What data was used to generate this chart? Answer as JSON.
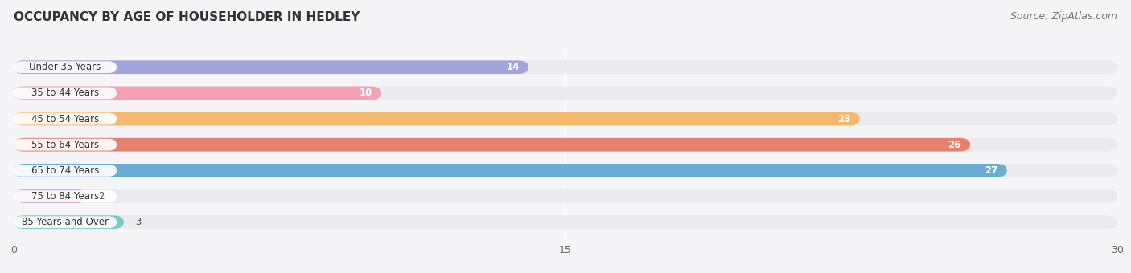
{
  "title": "OCCUPANCY BY AGE OF HOUSEHOLDER IN HEDLEY",
  "source": "Source: ZipAtlas.com",
  "categories": [
    "Under 35 Years",
    "35 to 44 Years",
    "45 to 54 Years",
    "55 to 64 Years",
    "65 to 74 Years",
    "75 to 84 Years",
    "85 Years and Over"
  ],
  "values": [
    14,
    10,
    23,
    26,
    27,
    2,
    3
  ],
  "bar_colors": [
    "#a0a4d9",
    "#f4a0b5",
    "#f5b96e",
    "#e8806e",
    "#6aaed6",
    "#c9a8d8",
    "#7dcac8"
  ],
  "bar_bg_color": "#eaeaef",
  "xlim": [
    0,
    30
  ],
  "xticks": [
    0,
    15,
    30
  ],
  "title_fontsize": 11,
  "source_fontsize": 9,
  "label_fontsize": 8.5,
  "value_fontsize": 8.5,
  "bar_height": 0.52,
  "bg_color": "#f5f5f8",
  "label_threshold": 10,
  "value_inside_color": "white",
  "value_outside_color": "#555555",
  "label_text_color": "#333333"
}
